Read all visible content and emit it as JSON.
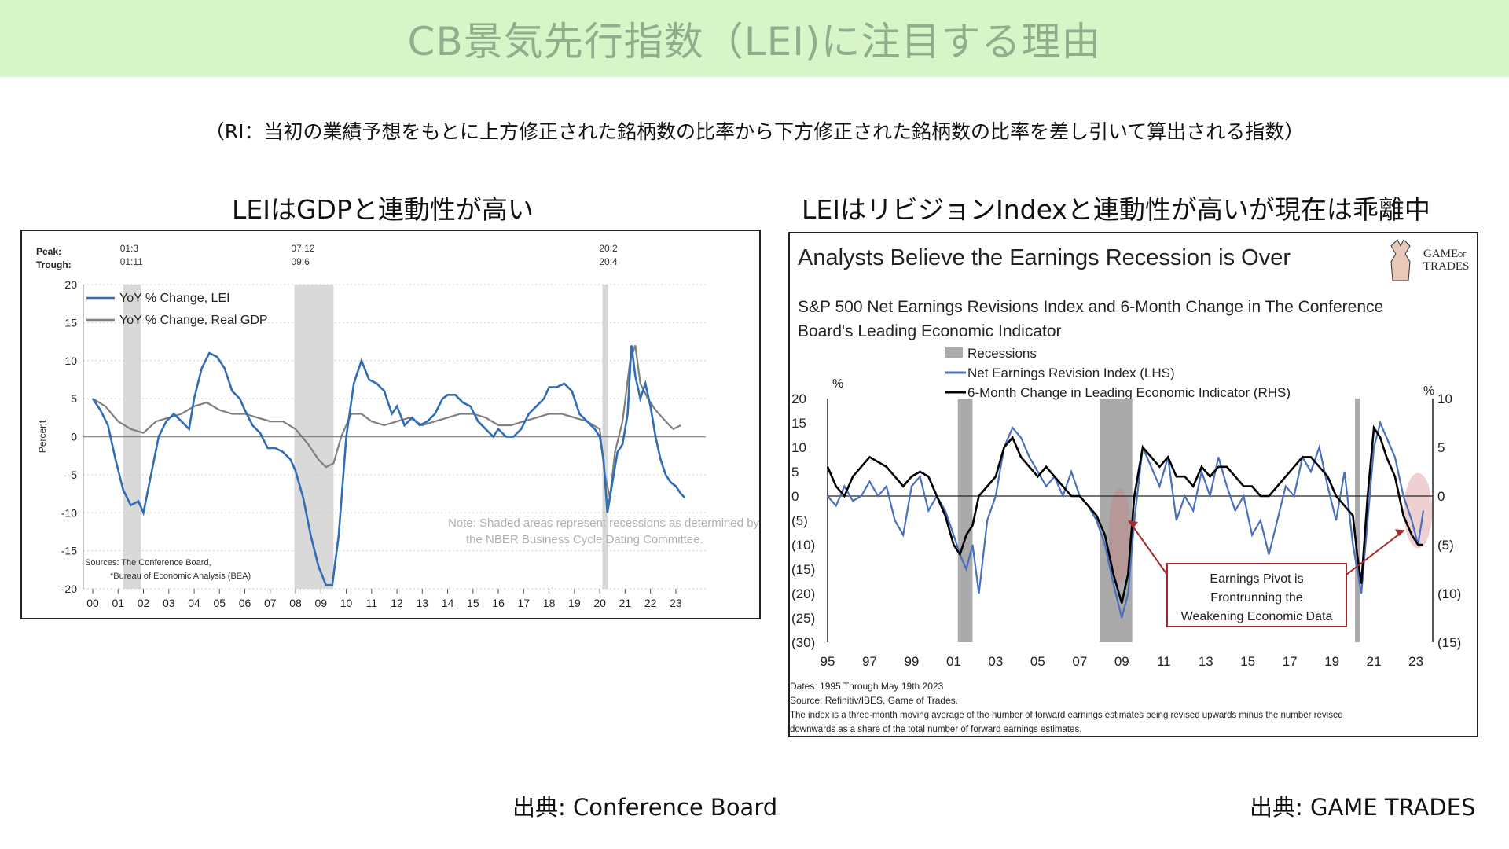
{
  "slide": {
    "title": "CB景気先行指数（LEI)に注目する理由",
    "subtitle": "（RI：当初の業績予想をもとに上方修正された銘柄数の比率から下方修正された銘柄数の比率を差し引いて算出される指数）",
    "left_heading": "LEIはGDPと連動性が高い",
    "right_heading": "LEIはリビジョンIndexと連動性が高いが現在は乖離中",
    "left_credit": "出典: Conference Board",
    "right_credit": "出典: GAME TRADES"
  },
  "colors": {
    "banner_bg": "#d8f5c8",
    "banner_text": "#8fae8c",
    "lei_blue": "#2f6db5",
    "gdp_gray": "#7f7f7f",
    "recession_shade": "#d9d9d9",
    "eri_blue": "#4a6fbd",
    "lei_black": "#000000",
    "callout_red": "#a52a2a"
  },
  "chart_data": [
    {
      "type": "line",
      "peak_label": "Peak:",
      "trough_label": "Trough:",
      "recession_labels": [
        {
          "peak": "01:3",
          "trough": "01:11"
        },
        {
          "peak": "07:12",
          "trough": "09:6"
        },
        {
          "peak": "20:2",
          "trough": "20:4"
        }
      ],
      "recessions": [
        [
          2001.2,
          2001.9
        ],
        [
          2007.95,
          2009.5
        ],
        [
          2020.1,
          2020.33
        ]
      ],
      "ylabel": "Percent",
      "ylim": [
        -20,
        20
      ],
      "yticks": [
        "20",
        "15",
        "10",
        "5",
        "0",
        "-5",
        "-10",
        "-15",
        "-20"
      ],
      "xlim": [
        2000,
        2023.5
      ],
      "xticks": [
        "00",
        "01",
        "02",
        "03",
        "04",
        "05",
        "06",
        "07",
        "08",
        "09",
        "10",
        "11",
        "12",
        "13",
        "14",
        "15",
        "16",
        "17",
        "18",
        "19",
        "20",
        "21",
        "22",
        "23"
      ],
      "series": [
        {
          "name": "YoY % Change, LEI",
          "color": "#2f6db5",
          "x": [
            2000,
            2000.3,
            2000.6,
            2000.9,
            2001.2,
            2001.5,
            2001.8,
            2002.0,
            2002.3,
            2002.6,
            2002.9,
            2003.2,
            2003.5,
            2003.8,
            2004.0,
            2004.3,
            2004.6,
            2004.9,
            2005.2,
            2005.5,
            2005.8,
            2006.0,
            2006.3,
            2006.6,
            2006.9,
            2007.2,
            2007.5,
            2007.8,
            2008.0,
            2008.3,
            2008.6,
            2008.9,
            2009.2,
            2009.45,
            2009.7,
            2010.0,
            2010.3,
            2010.6,
            2010.9,
            2011.2,
            2011.5,
            2011.8,
            2012.0,
            2012.3,
            2012.6,
            2012.9,
            2013.2,
            2013.5,
            2013.8,
            2014.0,
            2014.3,
            2014.6,
            2014.9,
            2015.2,
            2015.5,
            2015.8,
            2016.0,
            2016.3,
            2016.6,
            2016.9,
            2017.2,
            2017.5,
            2017.8,
            2018.0,
            2018.3,
            2018.6,
            2018.9,
            2019.2,
            2019.5,
            2019.8,
            2020.0,
            2020.15,
            2020.3,
            2020.5,
            2020.7,
            2020.9,
            2021.1,
            2021.25,
            2021.4,
            2021.6,
            2021.8,
            2022.0,
            2022.2,
            2022.4,
            2022.6,
            2022.8,
            2023.0,
            2023.2,
            2023.35
          ],
          "values": [
            5,
            3.5,
            1.5,
            -3,
            -7,
            -9,
            -8.5,
            -10,
            -5,
            0,
            2,
            3,
            2,
            1,
            5,
            9,
            11,
            10.5,
            9,
            6,
            5,
            3.5,
            1.5,
            0.5,
            -1.5,
            -1.5,
            -2,
            -3,
            -4.5,
            -8,
            -13,
            -17,
            -19.5,
            -19.5,
            -13,
            0,
            7,
            10,
            7.5,
            7,
            6,
            3,
            4,
            1.5,
            2.5,
            1.5,
            2,
            3,
            5,
            5.5,
            5.5,
            4.5,
            4,
            2,
            1,
            0,
            1,
            0,
            0,
            1,
            3,
            4,
            5,
            6.5,
            6.5,
            7,
            6,
            3,
            2,
            1,
            0,
            -3,
            -10,
            -6,
            -2,
            -1,
            3,
            12,
            8,
            5,
            7,
            4,
            0,
            -3,
            -5,
            -6,
            -6.5,
            -7.5,
            -8
          ]
        },
        {
          "name": "YoY % Change, Real GDP",
          "color": "#7f7f7f",
          "x": [
            2000,
            2000.5,
            2001.0,
            2001.5,
            2002.0,
            2002.5,
            2003.0,
            2003.5,
            2004.0,
            2004.5,
            2005.0,
            2005.5,
            2006.0,
            2006.5,
            2007.0,
            2007.5,
            2008.0,
            2008.5,
            2008.9,
            2009.2,
            2009.5,
            2009.8,
            2010.2,
            2010.6,
            2011.0,
            2011.5,
            2012.0,
            2012.5,
            2013.0,
            2013.5,
            2014.0,
            2014.5,
            2015.0,
            2015.5,
            2016.0,
            2016.5,
            2017.0,
            2017.5,
            2018.0,
            2018.5,
            2019.0,
            2019.5,
            2020.0,
            2020.2,
            2020.4,
            2020.6,
            2020.9,
            2021.2,
            2021.4,
            2021.6,
            2021.9,
            2022.2,
            2022.6,
            2022.9,
            2023.2
          ],
          "values": [
            5,
            4,
            2,
            1,
            0.5,
            2,
            2.5,
            3,
            4,
            4.5,
            3.5,
            3,
            3,
            2.5,
            2,
            2,
            1,
            -1,
            -3,
            -4,
            -3.5,
            0,
            3,
            3,
            2,
            1.5,
            2,
            2.5,
            1.5,
            2,
            2.5,
            3,
            3,
            2.5,
            1.5,
            1.5,
            2,
            2.5,
            3,
            3,
            2.5,
            2,
            1,
            -5,
            -8,
            -2,
            2,
            10,
            12,
            7,
            5,
            3.5,
            2,
            1,
            1.5
          ]
        }
      ],
      "note": "Note: Shaded areas represent recessions as determined by the NBER Business Cycle Dating Committee.",
      "sources_line1": "Sources: The Conference Board,",
      "sources_line2": "*Bureau of Economic Analysis (BEA)",
      "legend_position": "top-left",
      "grid": "horizontal dotted"
    },
    {
      "type": "line",
      "title": "Analysts Believe the Earnings Recession is Over",
      "subtitle_line1": "S&P 500 Net Earnings Revisions Index and 6-Month Change in The Conference",
      "subtitle_line2": "Board's Leading Economic Indicator",
      "logo_line1": "GAME",
      "logo_of": "OF",
      "logo_line2": "TRADES",
      "legend": [
        "Recessions",
        "Net Earnings Revision Index (LHS)",
        "6-Month Change in Leading Economic Indicator (RHS)"
      ],
      "left_unit": "%",
      "right_unit": "%",
      "left_ylim": [
        -30,
        20
      ],
      "left_yticks": [
        "20",
        "15",
        "10",
        "5",
        "0",
        "(5)",
        "(10)",
        "(15)",
        "(20)",
        "(25)",
        "(30)"
      ],
      "right_ylim": [
        -15,
        10
      ],
      "right_yticks": [
        "10",
        "5",
        "0",
        "(5)",
        "(10)",
        "(15)"
      ],
      "xlim": [
        1995,
        2023.8
      ],
      "xticks": [
        "95",
        "97",
        "99",
        "01",
        "03",
        "05",
        "07",
        "09",
        "11",
        "13",
        "15",
        "17",
        "19",
        "21",
        "23"
      ],
      "recessions": [
        [
          2001.2,
          2001.9
        ],
        [
          2007.95,
          2009.5
        ],
        [
          2020.1,
          2020.33
        ]
      ],
      "series": [
        {
          "name": "Net Earnings Revision Index (LHS)",
          "axis": "left",
          "color": "#4a6fbd",
          "x": [
            1995,
            1995.4,
            1995.8,
            1996.2,
            1996.6,
            1997.0,
            1997.4,
            1997.8,
            1998.2,
            1998.6,
            1999.0,
            1999.4,
            1999.8,
            2000.2,
            2000.6,
            2001.0,
            2001.3,
            2001.6,
            2001.9,
            2002.2,
            2002.6,
            2003.0,
            2003.4,
            2003.8,
            2004.2,
            2004.6,
            2005.0,
            2005.4,
            2005.8,
            2006.2,
            2006.6,
            2007.0,
            2007.4,
            2007.8,
            2008.2,
            2008.6,
            2009.0,
            2009.3,
            2009.6,
            2010.0,
            2010.4,
            2010.8,
            2011.2,
            2011.6,
            2012.0,
            2012.4,
            2012.8,
            2013.2,
            2013.6,
            2014.0,
            2014.4,
            2014.8,
            2015.2,
            2015.6,
            2016.0,
            2016.4,
            2016.8,
            2017.2,
            2017.6,
            2018.0,
            2018.4,
            2018.8,
            2019.2,
            2019.6,
            2020.0,
            2020.2,
            2020.4,
            2020.7,
            2021.0,
            2021.3,
            2021.6,
            2022.0,
            2022.4,
            2022.8,
            2023.1,
            2023.35
          ],
          "values": [
            0,
            -2,
            2,
            -1,
            0,
            3,
            0,
            2,
            -5,
            -8,
            2,
            4,
            -3,
            0,
            -3,
            -8,
            -12,
            -15,
            -10,
            -20,
            -5,
            0,
            10,
            14,
            12,
            8,
            5,
            2,
            4,
            0,
            5,
            0,
            -2,
            -5,
            -10,
            -18,
            -25,
            -20,
            -5,
            10,
            6,
            2,
            8,
            -5,
            0,
            -3,
            5,
            0,
            8,
            2,
            -3,
            0,
            -8,
            -5,
            -12,
            -5,
            2,
            0,
            8,
            5,
            10,
            2,
            -5,
            5,
            -10,
            -15,
            -20,
            -5,
            10,
            15,
            12,
            8,
            0,
            -5,
            -10,
            -3
          ]
        },
        {
          "name": "6-Month Change in Leading Economic Indicator (RHS)",
          "axis": "right",
          "color": "#000000",
          "x": [
            1995,
            1995.4,
            1995.8,
            1996.2,
            1996.6,
            1997.0,
            1997.4,
            1997.8,
            1998.2,
            1998.6,
            1999.0,
            1999.4,
            1999.8,
            2000.2,
            2000.6,
            2001.0,
            2001.3,
            2001.6,
            2001.9,
            2002.2,
            2002.6,
            2003.0,
            2003.4,
            2003.8,
            2004.2,
            2004.6,
            2005.0,
            2005.4,
            2005.8,
            2006.2,
            2006.6,
            2007.0,
            2007.4,
            2007.8,
            2008.2,
            2008.6,
            2009.0,
            2009.3,
            2009.6,
            2010.0,
            2010.4,
            2010.8,
            2011.2,
            2011.6,
            2012.0,
            2012.4,
            2012.8,
            2013.2,
            2013.6,
            2014.0,
            2014.4,
            2014.8,
            2015.2,
            2015.6,
            2016.0,
            2016.4,
            2016.8,
            2017.2,
            2017.6,
            2018.0,
            2018.4,
            2018.8,
            2019.2,
            2019.6,
            2020.0,
            2020.2,
            2020.4,
            2020.7,
            2021.0,
            2021.3,
            2021.6,
            2022.0,
            2022.4,
            2022.8,
            2023.1,
            2023.35
          ],
          "values": [
            3,
            1,
            0,
            2,
            3,
            4,
            3.5,
            3,
            2,
            1,
            2,
            2.5,
            2,
            0,
            -2,
            -5,
            -6,
            -4,
            -3,
            0,
            1,
            2,
            5,
            6,
            4,
            3,
            2,
            3,
            2,
            1,
            0,
            0,
            -1,
            -2,
            -4,
            -8,
            -11,
            -8,
            0,
            5,
            4,
            3,
            4,
            2,
            2,
            1,
            3,
            2,
            3,
            3,
            2,
            1,
            1,
            0,
            0,
            1,
            2,
            3,
            4,
            4,
            3,
            2,
            0,
            -1,
            -2,
            -6,
            -9,
            0,
            7,
            6,
            4,
            2,
            -2,
            -4,
            -5,
            -5
          ]
        }
      ],
      "callout": [
        "Earnings Pivot is",
        "Frontrunning the",
        "Weakening  Economic Data"
      ],
      "footnote1": "Dates: 1995 Through May 19th 2023",
      "footnote2": "Source: Refinitiv/IBES, Game of Trades.",
      "footnote3": "The index is a three-month moving average of the number of forward earnings estimates being revised upwards minus the number revised",
      "footnote4": "downwards as a share of the total number of forward earnings estimates."
    }
  ]
}
